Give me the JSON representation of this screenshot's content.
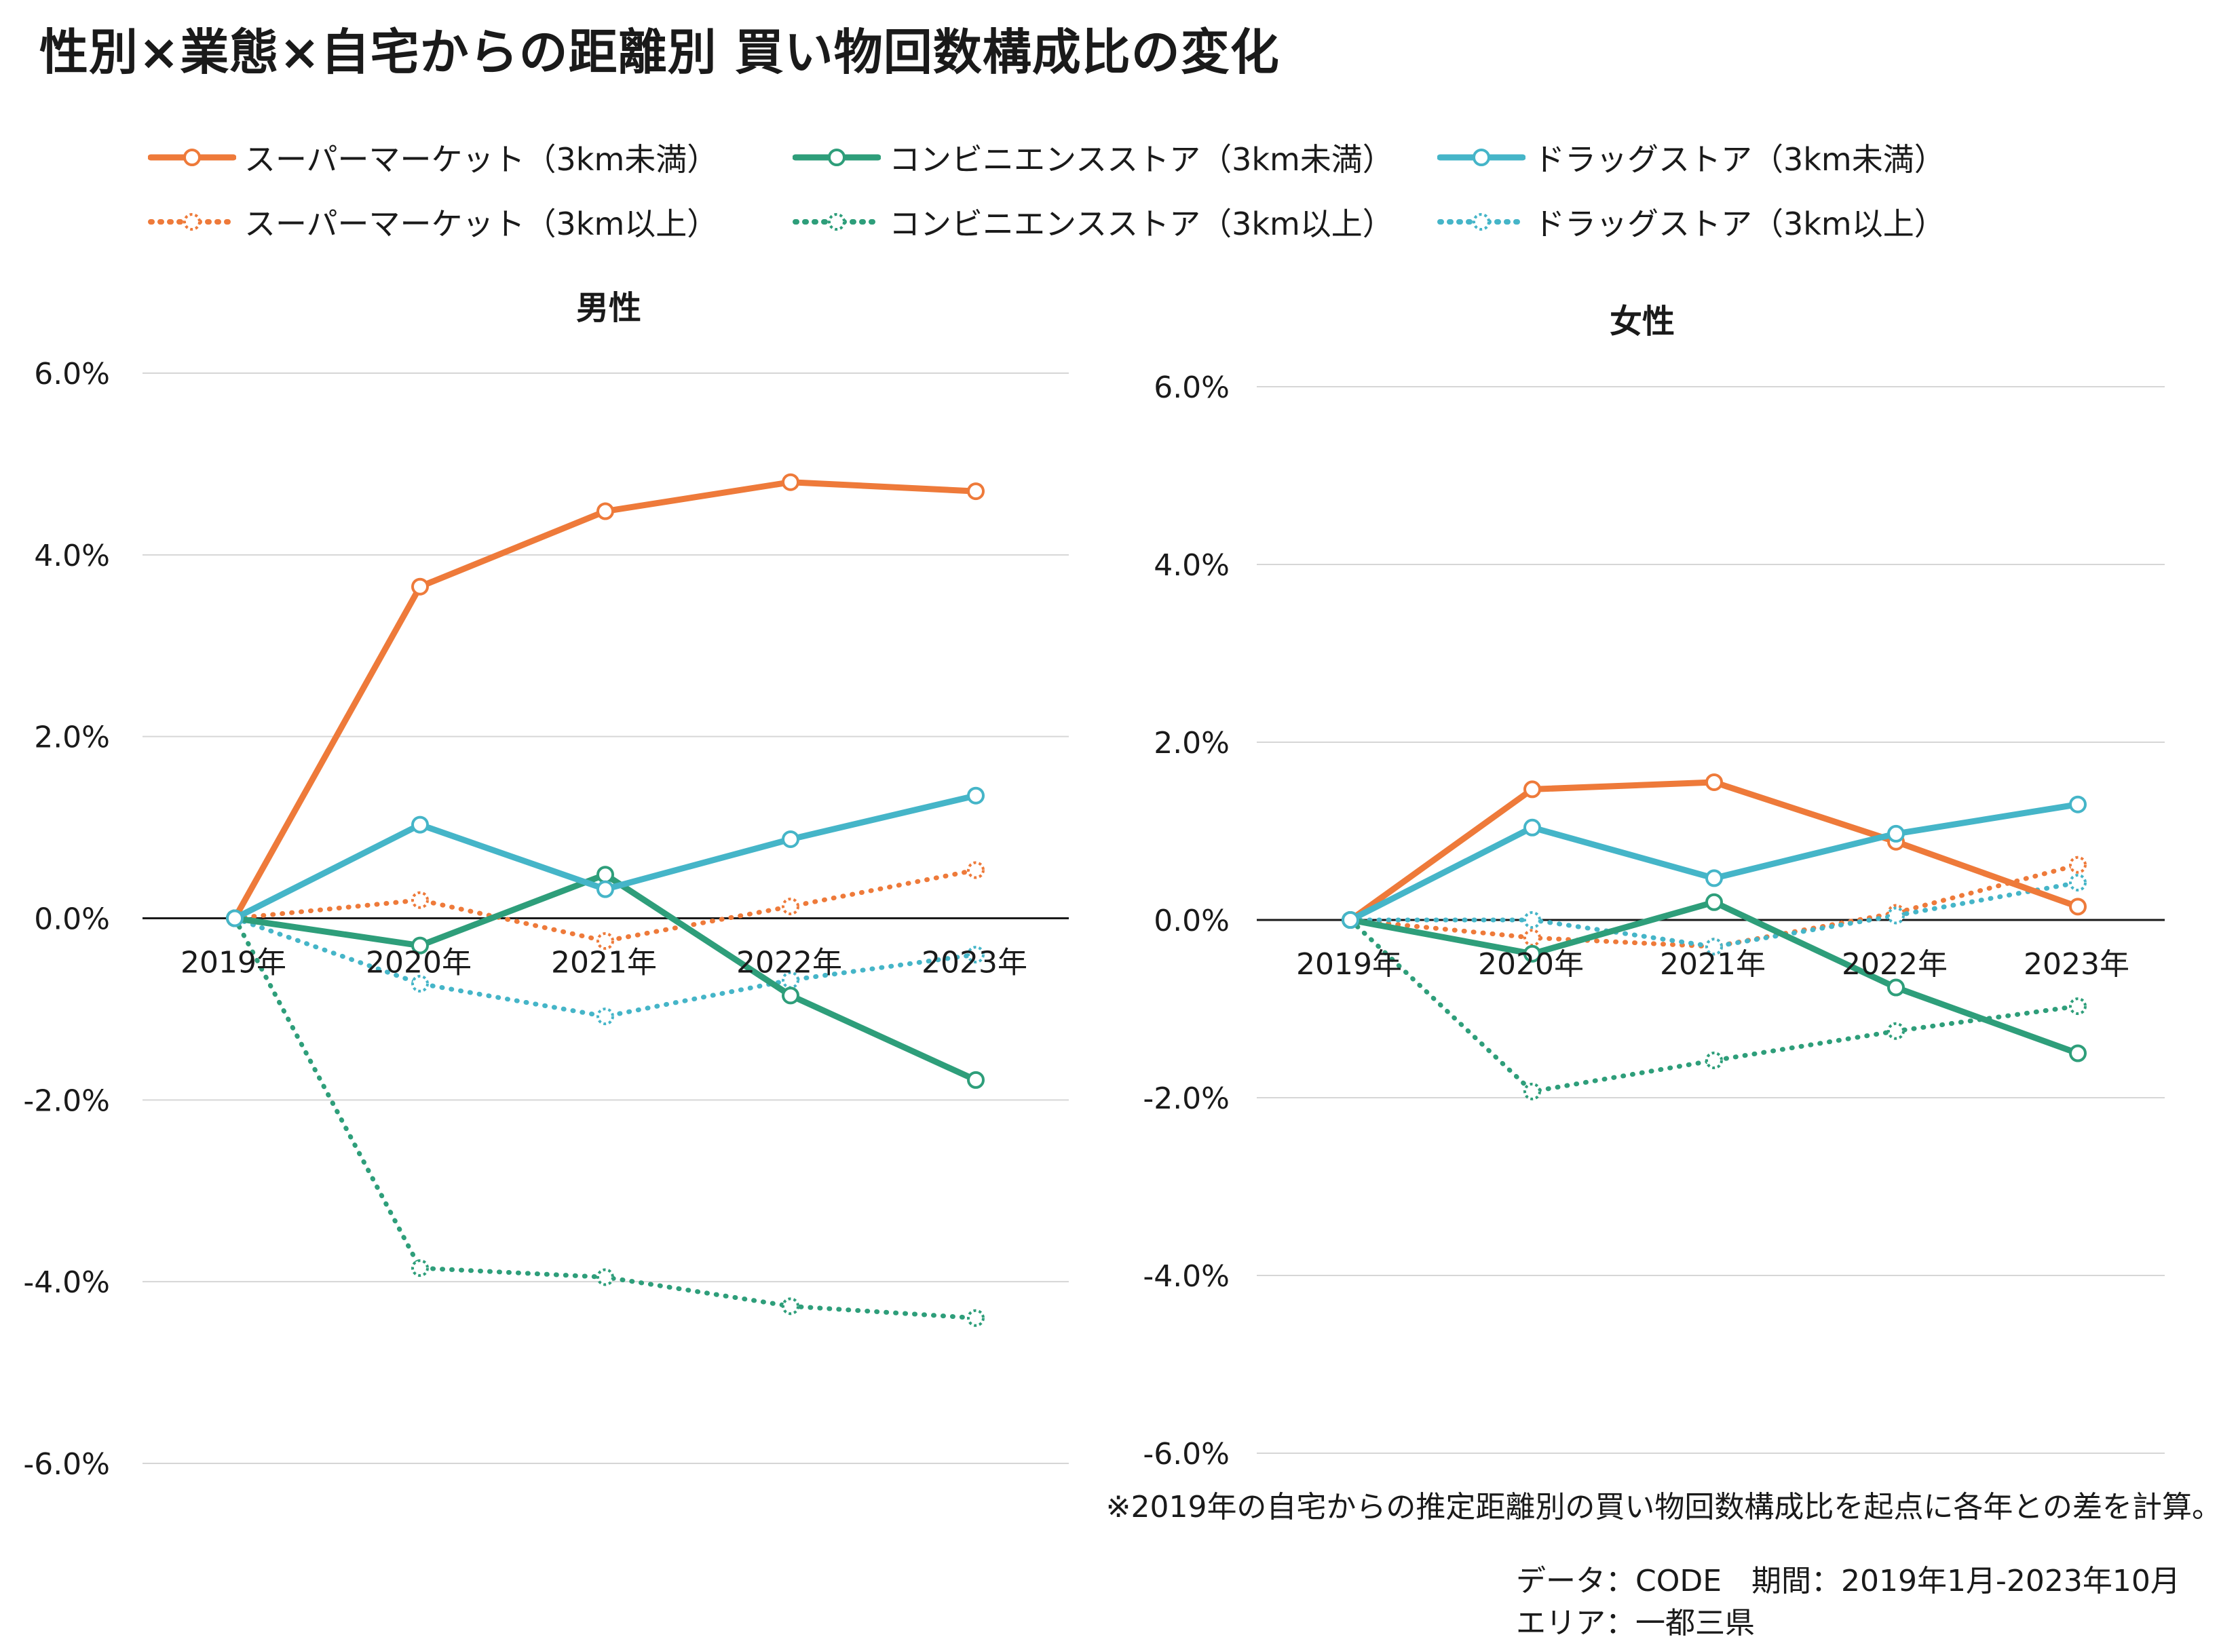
{
  "title": "性別×業態×自宅からの距離別 買い物回数構成比の変化",
  "legend": [
    {
      "label": "スーパーマーケット（3km未満）",
      "color": "#EE7A3A",
      "dashed": false
    },
    {
      "label": "コンビニエンスストア（3km未満）",
      "color": "#2E9E7A",
      "dashed": false
    },
    {
      "label": "ドラッグストア（3km未満）",
      "color": "#45B5C8",
      "dashed": false
    },
    {
      "label": "スーパーマーケット（3km以上）",
      "color": "#EE7A3A",
      "dashed": true
    },
    {
      "label": "コンビニエンスストア（3km以上）",
      "color": "#2E9E7A",
      "dashed": true
    },
    {
      "label": "ドラッグストア（3km以上）",
      "color": "#45B5C8",
      "dashed": true
    }
  ],
  "chart_data": [
    {
      "type": "line",
      "title": "男性",
      "categories": [
        "2019年",
        "2020年",
        "2021年",
        "2022年",
        "2023年"
      ],
      "ylim": [
        -6,
        6
      ],
      "yticks": [
        "-6.0%",
        "-4.0%",
        "-2.0%",
        "0.0%",
        "2.0%",
        "4.0%",
        "6.0%"
      ],
      "grid": true,
      "series": [
        {
          "name": "スーパーマーケット（3km未満）",
          "color": "#EE7A3A",
          "dashed": false,
          "values": [
            0,
            3.65,
            4.48,
            4.8,
            4.7
          ]
        },
        {
          "name": "コンビニエンスストア（3km未満）",
          "color": "#2E9E7A",
          "dashed": false,
          "values": [
            0,
            -0.3,
            0.48,
            -0.85,
            -1.78
          ]
        },
        {
          "name": "ドラッグストア（3km未満）",
          "color": "#45B5C8",
          "dashed": false,
          "values": [
            0,
            1.03,
            0.32,
            0.87,
            1.35
          ]
        },
        {
          "name": "スーパーマーケット（3km以上）",
          "color": "#EE7A3A",
          "dashed": true,
          "values": [
            0,
            0.2,
            -0.25,
            0.13,
            0.53
          ]
        },
        {
          "name": "コンビニエンスストア（3km以上）",
          "color": "#2E9E7A",
          "dashed": true,
          "values": [
            0,
            -3.85,
            -3.95,
            -4.27,
            -4.4
          ]
        },
        {
          "name": "ドラッグストア（3km以上）",
          "color": "#45B5C8",
          "dashed": true,
          "values": [
            0,
            -0.72,
            -1.08,
            -0.68,
            -0.4
          ]
        }
      ]
    },
    {
      "type": "line",
      "title": "女性",
      "categories": [
        "2019年",
        "2020年",
        "2021年",
        "2022年",
        "2023年"
      ],
      "ylim": [
        -6,
        6
      ],
      "yticks": [
        "-6.0%",
        "-4.0%",
        "-2.0%",
        "0.0%",
        "2.0%",
        "4.0%",
        "6.0%"
      ],
      "grid": true,
      "series": [
        {
          "name": "スーパーマーケット（3km未満）",
          "color": "#EE7A3A",
          "dashed": false,
          "values": [
            0,
            1.47,
            1.55,
            0.88,
            0.15
          ]
        },
        {
          "name": "コンビニエンスストア（3km未満）",
          "color": "#2E9E7A",
          "dashed": false,
          "values": [
            0,
            -0.38,
            0.2,
            -0.76,
            -1.5
          ]
        },
        {
          "name": "ドラッグストア（3km未満）",
          "color": "#45B5C8",
          "dashed": false,
          "values": [
            0,
            1.04,
            0.47,
            0.97,
            1.3
          ]
        },
        {
          "name": "スーパーマーケット（3km以上）",
          "color": "#EE7A3A",
          "dashed": true,
          "values": [
            0,
            -0.2,
            -0.3,
            0.08,
            0.62
          ]
        },
        {
          "name": "コンビニエンスストア（3km以上）",
          "color": "#2E9E7A",
          "dashed": true,
          "values": [
            0,
            -1.93,
            -1.58,
            -1.25,
            -0.97
          ]
        },
        {
          "name": "ドラッグストア（3km以上）",
          "color": "#45B5C8",
          "dashed": true,
          "values": [
            0,
            0.0,
            -0.3,
            0.05,
            0.42
          ]
        }
      ]
    }
  ],
  "note": "※2019年の自宅からの推定距離別の買い物回数構成比を起点に各年との差を計算。",
  "source_lines": [
    "データ：CODE　期間：2019年1月-2023年10月",
    "エリア：一都三県"
  ]
}
